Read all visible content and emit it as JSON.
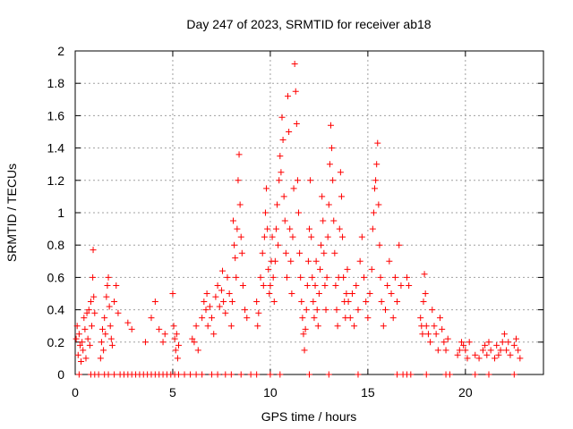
{
  "chart_data": {
    "type": "scatter",
    "title": "Day 247 of 2023, SRMTID for receiver ab18",
    "xlabel": "GPS time / hours",
    "ylabel": "SRMTID / TECUs",
    "xlim": [
      0,
      24
    ],
    "ylim": [
      0,
      2
    ],
    "xticks": [
      0,
      5,
      10,
      15,
      20
    ],
    "xtick_labels": [
      "0",
      "5",
      "10",
      "15",
      "20"
    ],
    "yticks": [
      0,
      0.2,
      0.4,
      0.6,
      0.8,
      1,
      1.2,
      1.4,
      1.6,
      1.8,
      2
    ],
    "ytick_labels": [
      "0",
      "0.2",
      "0.4",
      "0.6",
      "0.8",
      "1",
      "1.2",
      "1.4",
      "1.6",
      "1.8",
      "2"
    ],
    "grid": true,
    "marker": "plus",
    "color": "#ff0000",
    "series": [
      {
        "name": "SRMTID",
        "points": [
          [
            0.05,
            0.22
          ],
          [
            0.1,
            0.3
          ],
          [
            0.15,
            0.12
          ],
          [
            0.2,
            0.25
          ],
          [
            0.25,
            0.18
          ],
          [
            0.3,
            0.08
          ],
          [
            0.35,
            0.2
          ],
          [
            0.4,
            0.15
          ],
          [
            0.45,
            0.35
          ],
          [
            0.5,
            0.28
          ],
          [
            0.55,
            0.1
          ],
          [
            0.6,
            0.38
          ],
          [
            0.65,
            0.22
          ],
          [
            0.7,
            0.4
          ],
          [
            0.75,
            0.18
          ],
          [
            0.8,
            0.45
          ],
          [
            0.85,
            0.3
          ],
          [
            0.9,
            0.6
          ],
          [
            0.92,
            0.77
          ],
          [
            0.95,
            0.48
          ],
          [
            1.0,
            0.38
          ],
          [
            1.3,
            0.1
          ],
          [
            1.35,
            0.2
          ],
          [
            1.4,
            0.28
          ],
          [
            1.45,
            0.15
          ],
          [
            1.5,
            0.35
          ],
          [
            1.55,
            0.25
          ],
          [
            1.6,
            0.48
          ],
          [
            1.65,
            0.55
          ],
          [
            1.7,
            0.6
          ],
          [
            1.75,
            0.42
          ],
          [
            1.8,
            0.3
          ],
          [
            1.85,
            0.22
          ],
          [
            1.9,
            0.18
          ],
          [
            2.0,
            0.45
          ],
          [
            2.1,
            0.55
          ],
          [
            2.2,
            0.38
          ],
          [
            2.7,
            0.32
          ],
          [
            2.9,
            0.28
          ],
          [
            3.6,
            0.2
          ],
          [
            3.9,
            0.35
          ],
          [
            4.1,
            0.45
          ],
          [
            4.3,
            0.28
          ],
          [
            4.5,
            0.2
          ],
          [
            4.6,
            0.25
          ],
          [
            5.0,
            0.5
          ],
          [
            5.05,
            0.3
          ],
          [
            5.1,
            0.22
          ],
          [
            5.15,
            0.15
          ],
          [
            5.2,
            0.25
          ],
          [
            5.25,
            0.1
          ],
          [
            5.3,
            0.18
          ],
          [
            6.0,
            0.22
          ],
          [
            6.1,
            0.2
          ],
          [
            6.2,
            0.3
          ],
          [
            6.3,
            0.15
          ],
          [
            6.5,
            0.35
          ],
          [
            6.6,
            0.45
          ],
          [
            6.7,
            0.4
          ],
          [
            6.75,
            0.5
          ],
          [
            6.8,
            0.3
          ],
          [
            6.9,
            0.42
          ],
          [
            7.0,
            0.35
          ],
          [
            7.1,
            0.25
          ],
          [
            7.2,
            0.48
          ],
          [
            7.3,
            0.55
          ],
          [
            7.4,
            0.42
          ],
          [
            7.5,
            0.52
          ],
          [
            7.55,
            0.64
          ],
          [
            7.6,
            0.45
          ],
          [
            7.7,
            0.38
          ],
          [
            7.8,
            0.6
          ],
          [
            7.9,
            0.5
          ],
          [
            8.0,
            0.3
          ],
          [
            8.05,
            0.45
          ],
          [
            8.1,
            0.95
          ],
          [
            8.15,
            0.8
          ],
          [
            8.2,
            0.72
          ],
          [
            8.25,
            0.6
          ],
          [
            8.3,
            0.9
          ],
          [
            8.35,
            1.2
          ],
          [
            8.4,
            1.36
          ],
          [
            8.45,
            1.05
          ],
          [
            8.5,
            0.85
          ],
          [
            8.55,
            0.75
          ],
          [
            8.6,
            0.55
          ],
          [
            8.7,
            0.4
          ],
          [
            8.8,
            0.35
          ],
          [
            9.3,
            0.45
          ],
          [
            9.35,
            0.3
          ],
          [
            9.4,
            0.38
          ],
          [
            9.5,
            0.6
          ],
          [
            9.6,
            0.75
          ],
          [
            9.65,
            0.55
          ],
          [
            9.7,
            0.85
          ],
          [
            9.75,
            1.0
          ],
          [
            9.8,
            1.15
          ],
          [
            9.85,
            0.9
          ],
          [
            9.9,
            0.65
          ],
          [
            9.95,
            0.5
          ],
          [
            10.0,
            0.55
          ],
          [
            10.05,
            0.7
          ],
          [
            10.1,
            0.85
          ],
          [
            10.15,
            0.6
          ],
          [
            10.2,
            0.45
          ],
          [
            10.25,
            0.7
          ],
          [
            10.3,
            0.9
          ],
          [
            10.35,
            1.05
          ],
          [
            10.4,
            0.8
          ],
          [
            10.45,
            1.2
          ],
          [
            10.5,
            1.35
          ],
          [
            10.55,
            1.25
          ],
          [
            10.6,
            1.59
          ],
          [
            10.65,
            1.45
          ],
          [
            10.7,
            1.1
          ],
          [
            10.75,
            0.95
          ],
          [
            10.8,
            0.75
          ],
          [
            10.85,
            0.6
          ],
          [
            10.9,
            1.72
          ],
          [
            10.95,
            1.5
          ],
          [
            11.0,
            0.9
          ],
          [
            11.05,
            0.7
          ],
          [
            11.1,
            0.5
          ],
          [
            11.15,
            0.85
          ],
          [
            11.2,
            1.15
          ],
          [
            11.25,
            1.92
          ],
          [
            11.3,
            1.75
          ],
          [
            11.35,
            1.55
          ],
          [
            11.4,
            1.2
          ],
          [
            11.45,
            1.0
          ],
          [
            11.5,
            0.75
          ],
          [
            11.55,
            0.6
          ],
          [
            11.6,
            0.45
          ],
          [
            11.65,
            0.35
          ],
          [
            11.7,
            0.25
          ],
          [
            11.75,
            0.15
          ],
          [
            11.8,
            0.28
          ],
          [
            11.85,
            0.4
          ],
          [
            11.9,
            0.55
          ],
          [
            11.95,
            0.7
          ],
          [
            12.0,
            0.9
          ],
          [
            12.05,
            1.2
          ],
          [
            12.1,
            0.85
          ],
          [
            12.15,
            0.6
          ],
          [
            12.2,
            0.45
          ],
          [
            12.25,
            0.35
          ],
          [
            12.3,
            0.55
          ],
          [
            12.35,
            0.7
          ],
          [
            12.4,
            0.4
          ],
          [
            12.45,
            0.3
          ],
          [
            12.5,
            0.5
          ],
          [
            12.55,
            0.65
          ],
          [
            12.6,
            0.8
          ],
          [
            12.65,
            1.1
          ],
          [
            12.7,
            0.95
          ],
          [
            12.75,
            0.75
          ],
          [
            12.8,
            0.55
          ],
          [
            12.85,
            0.4
          ],
          [
            12.9,
            0.6
          ],
          [
            12.95,
            0.85
          ],
          [
            13.0,
            1.05
          ],
          [
            13.05,
            1.3
          ],
          [
            13.1,
            1.54
          ],
          [
            13.15,
            1.4
          ],
          [
            13.2,
            1.2
          ],
          [
            13.25,
            0.95
          ],
          [
            13.3,
            0.75
          ],
          [
            13.35,
            0.55
          ],
          [
            13.4,
            0.4
          ],
          [
            13.45,
            0.3
          ],
          [
            13.5,
            0.6
          ],
          [
            13.55,
            0.9
          ],
          [
            13.6,
            1.25
          ],
          [
            13.65,
            1.1
          ],
          [
            13.7,
            0.85
          ],
          [
            13.75,
            0.6
          ],
          [
            13.8,
            0.45
          ],
          [
            13.85,
            0.35
          ],
          [
            13.9,
            0.5
          ],
          [
            13.95,
            0.65
          ],
          [
            14.0,
            0.45
          ],
          [
            14.1,
            0.35
          ],
          [
            14.2,
            0.5
          ],
          [
            14.3,
            0.3
          ],
          [
            14.4,
            0.55
          ],
          [
            14.5,
            0.4
          ],
          [
            14.6,
            0.7
          ],
          [
            14.7,
            0.85
          ],
          [
            14.8,
            0.6
          ],
          [
            14.9,
            0.45
          ],
          [
            15.0,
            0.35
          ],
          [
            15.1,
            0.5
          ],
          [
            15.2,
            0.65
          ],
          [
            15.25,
            0.9
          ],
          [
            15.3,
            1.0
          ],
          [
            15.35,
            1.15
          ],
          [
            15.4,
            1.2
          ],
          [
            15.45,
            1.3
          ],
          [
            15.5,
            1.43
          ],
          [
            15.55,
            1.05
          ],
          [
            15.6,
            0.8
          ],
          [
            15.65,
            0.6
          ],
          [
            15.7,
            0.45
          ],
          [
            15.8,
            0.3
          ],
          [
            15.9,
            0.4
          ],
          [
            16.0,
            0.55
          ],
          [
            16.1,
            0.7
          ],
          [
            16.2,
            0.5
          ],
          [
            16.3,
            0.35
          ],
          [
            16.4,
            0.6
          ],
          [
            16.5,
            0.45
          ],
          [
            16.6,
            0.8
          ],
          [
            16.7,
            0.55
          ],
          [
            17.0,
            0.6
          ],
          [
            17.1,
            0.55
          ],
          [
            17.7,
            0.35
          ],
          [
            17.75,
            0.3
          ],
          [
            17.8,
            0.25
          ],
          [
            17.85,
            0.45
          ],
          [
            17.9,
            0.62
          ],
          [
            17.95,
            0.5
          ],
          [
            18.0,
            0.3
          ],
          [
            18.1,
            0.25
          ],
          [
            18.2,
            0.2
          ],
          [
            18.3,
            0.4
          ],
          [
            18.4,
            0.3
          ],
          [
            18.5,
            0.25
          ],
          [
            18.6,
            0.15
          ],
          [
            18.7,
            0.35
          ],
          [
            18.8,
            0.28
          ],
          [
            18.9,
            0.2
          ],
          [
            19.0,
            0.15
          ],
          [
            19.1,
            0.22
          ],
          [
            19.6,
            0.12
          ],
          [
            19.7,
            0.15
          ],
          [
            19.8,
            0.2
          ],
          [
            19.9,
            0.18
          ],
          [
            20.0,
            0.15
          ],
          [
            20.1,
            0.1
          ],
          [
            20.2,
            0.2
          ],
          [
            20.5,
            0.12
          ],
          [
            20.7,
            0.1
          ],
          [
            20.9,
            0.15
          ],
          [
            21.0,
            0.18
          ],
          [
            21.1,
            0.12
          ],
          [
            21.2,
            0.2
          ],
          [
            21.3,
            0.15
          ],
          [
            21.5,
            0.1
          ],
          [
            21.6,
            0.18
          ],
          [
            21.7,
            0.12
          ],
          [
            21.8,
            0.15
          ],
          [
            21.9,
            0.2
          ],
          [
            22.0,
            0.25
          ],
          [
            22.1,
            0.15
          ],
          [
            22.2,
            0.2
          ],
          [
            22.3,
            0.12
          ],
          [
            22.5,
            0.18
          ],
          [
            22.6,
            0.22
          ],
          [
            22.7,
            0.15
          ],
          [
            22.8,
            0.1
          ],
          [
            0.2,
            0
          ],
          [
            0.8,
            0
          ],
          [
            1.0,
            0
          ],
          [
            1.2,
            0
          ],
          [
            1.5,
            0
          ],
          [
            1.7,
            0
          ],
          [
            2.0,
            0
          ],
          [
            2.3,
            0
          ],
          [
            2.5,
            0
          ],
          [
            2.7,
            0
          ],
          [
            2.9,
            0
          ],
          [
            3.1,
            0
          ],
          [
            3.3,
            0
          ],
          [
            3.5,
            0
          ],
          [
            3.7,
            0
          ],
          [
            3.9,
            0
          ],
          [
            4.1,
            0
          ],
          [
            4.3,
            0
          ],
          [
            4.5,
            0
          ],
          [
            4.7,
            0
          ],
          [
            4.9,
            0
          ],
          [
            5.1,
            0
          ],
          [
            5.3,
            0
          ],
          [
            5.6,
            0
          ],
          [
            5.9,
            0
          ],
          [
            6.2,
            0
          ],
          [
            6.5,
            0
          ],
          [
            7.0,
            0
          ],
          [
            7.3,
            0
          ],
          [
            7.7,
            0
          ],
          [
            8.0,
            0
          ],
          [
            8.5,
            0
          ],
          [
            9.0,
            0
          ],
          [
            9.3,
            0
          ],
          [
            10.0,
            0
          ],
          [
            10.5,
            0
          ],
          [
            12.0,
            0
          ],
          [
            13.0,
            0
          ],
          [
            14.5,
            0
          ],
          [
            16.5,
            0
          ],
          [
            16.8,
            0
          ],
          [
            17.0,
            0
          ],
          [
            17.2,
            0
          ],
          [
            18.0,
            0
          ],
          [
            19.0,
            0
          ],
          [
            19.2,
            0
          ],
          [
            20.5,
            0
          ],
          [
            21.2,
            0
          ],
          [
            22.5,
            0
          ]
        ]
      }
    ]
  }
}
